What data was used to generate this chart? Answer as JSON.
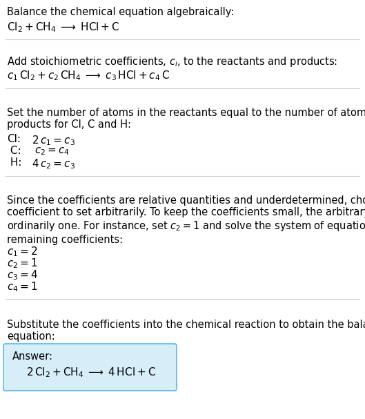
{
  "bg_color": "#ffffff",
  "text_color": "#000000",
  "sep_color": "#cccccc",
  "section1_title": "Balance the chemical equation algebraically:",
  "section2_title": "Add stoichiometric coefficients, $c_i$, to the reactants and products:",
  "section3_title": "Set the number of atoms in the reactants equal to the number of atoms in the\nproducts for Cl, C and H:",
  "section3_lines": [
    [
      "Cl:",
      " 2 ",
      "$c_1$",
      " = ",
      "$c_3$"
    ],
    [
      " C:",
      " ",
      "$c_2$",
      " = ",
      "$c_4$"
    ],
    [
      " H:",
      " 4 ",
      "$c_2$",
      " = ",
      "$c_3$"
    ]
  ],
  "section4_title": "Since the coefficients are relative quantities and underdetermined, choose a\ncoefficient to set arbitrarily. To keep the coefficients small, the arbitrary value is\nordinarily one. For instance, set $c_2 = 1$ and solve the system of equations for the\nremaining coefficients:",
  "section4_lines": [
    "$c_1 = 2$",
    "$c_2 = 1$",
    "$c_3 = 4$",
    "$c_4 = 1$"
  ],
  "section5_title": "Substitute the coefficients into the chemical reaction to obtain the balanced\nequation:",
  "answer_label": "Answer:",
  "answer_box_color": "#d6eef8",
  "answer_box_edge": "#5bb8e8"
}
